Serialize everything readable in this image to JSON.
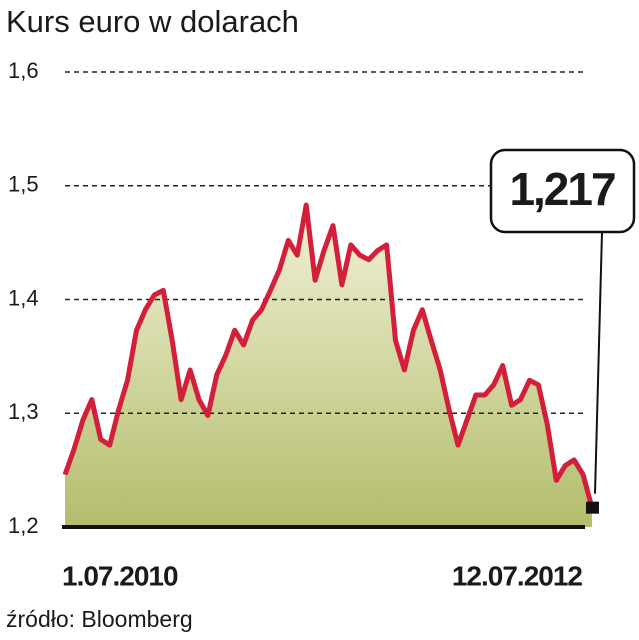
{
  "chart_data": {
    "type": "area",
    "title": "Kurs euro w dolarach",
    "source": "źródło: Bloomberg",
    "categories": [
      "1.07.2010",
      null,
      null,
      null,
      null,
      null,
      null,
      null,
      null,
      null,
      null,
      null,
      null,
      null,
      null,
      null,
      null,
      null,
      null,
      null,
      null,
      null,
      null,
      null,
      null,
      null,
      null,
      null,
      null,
      null,
      null,
      null,
      null,
      null,
      null,
      null,
      null,
      null,
      null,
      null,
      null,
      null,
      null,
      null,
      null,
      null,
      null,
      null,
      null,
      null,
      null,
      null,
      null,
      null,
      null,
      null,
      null,
      null,
      null,
      "12.07.2012"
    ],
    "values": [
      1.246,
      1.268,
      1.294,
      1.312,
      1.277,
      1.272,
      1.303,
      1.329,
      1.373,
      1.391,
      1.404,
      1.408,
      1.364,
      1.312,
      1.338,
      1.312,
      1.298,
      1.334,
      1.351,
      1.373,
      1.36,
      1.382,
      1.391,
      1.408,
      1.426,
      1.452,
      1.439,
      1.483,
      1.417,
      1.443,
      1.465,
      1.413,
      1.448,
      1.439,
      1.435,
      1.443,
      1.448,
      1.364,
      1.338,
      1.373,
      1.391,
      1.364,
      1.338,
      1.303,
      1.272,
      1.294,
      1.316,
      1.316,
      1.325,
      1.342,
      1.307,
      1.312,
      1.329,
      1.325,
      1.29,
      1.241,
      1.254,
      1.259,
      1.246,
      1.217
    ],
    "value_labels": [
      null,
      null,
      null,
      null,
      null,
      null,
      null,
      null,
      null,
      null,
      null,
      null,
      null,
      null,
      null,
      null,
      null,
      null,
      null,
      null,
      null,
      null,
      null,
      null,
      null,
      null,
      null,
      null,
      null,
      null,
      null,
      null,
      null,
      null,
      null,
      null,
      null,
      null,
      null,
      null,
      null,
      null,
      null,
      null,
      null,
      null,
      null,
      null,
      null,
      null,
      null,
      null,
      null,
      null,
      null,
      null,
      null,
      null,
      null,
      "1,217"
    ],
    "color": "#d41f3a",
    "ylim": [
      1.2,
      1.6
    ],
    "yticks": [
      {
        "value": 1.2,
        "label": "1,2"
      },
      {
        "value": 1.3,
        "label": "1,3"
      },
      {
        "value": 1.4,
        "label": "1,4"
      },
      {
        "value": 1.5,
        "label": "1,5"
      },
      {
        "value": 1.6,
        "label": "1,6"
      }
    ],
    "grid": true
  }
}
